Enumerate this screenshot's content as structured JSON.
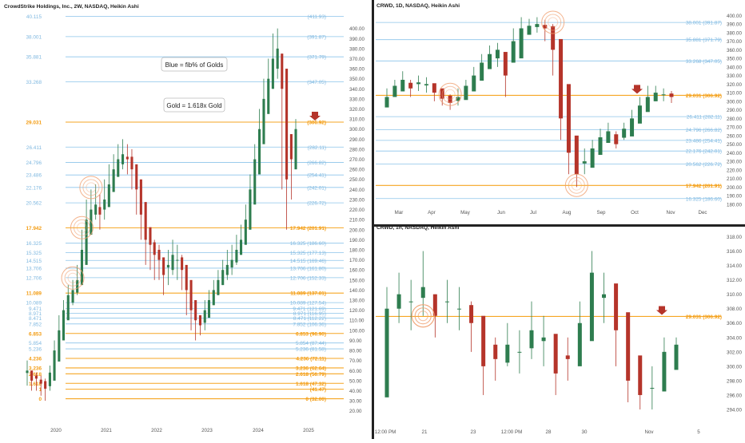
{
  "colors": {
    "blue_fib": "#8cc4ea",
    "blue_label": "#7fb8e0",
    "gold": "#f6a623",
    "gold_text": "#f39c12",
    "candle_up": "#2e7d4f",
    "candle_down": "#b5342a",
    "axis_text": "#555555",
    "divider": "#222222",
    "circle": "#f0a070"
  },
  "icons": [
    "down-arrow-icon",
    "highlight-circle-icon"
  ],
  "chart_data": [
    {
      "type": "candlestick",
      "title": "CrowdStrike Holdings, Inc., 2W, NASDAQ, Heikin Ashi",
      "xlabel": "",
      "ylabel": "",
      "x_ticks": [
        "2020",
        "2021",
        "2022",
        "2023",
        "2024",
        "2025"
      ],
      "y_ticks": [
        "400.00",
        "390.00",
        "380.00",
        "370.00",
        "360.00",
        "350.00",
        "340.00",
        "330.00",
        "320.00",
        "310.00",
        "300.00",
        "290.00",
        "280.00",
        "270.00",
        "260.00",
        "250.00",
        "240.00",
        "230.00",
        "220.00",
        "210.00",
        "200.00",
        "190.00",
        "180.00",
        "170.00",
        "160.00",
        "150.00",
        "140.00",
        "130.00",
        "120.00",
        "110.00",
        "100.00",
        "90.00",
        "80.00",
        "70.00",
        "60.00",
        "50.00",
        "40.00",
        "30.00",
        "20.00"
      ],
      "ylim": [
        15,
        414
      ],
      "fib_levels": [
        {
          "ratio": "40.115",
          "price": 411.93,
          "label": "(411.93)",
          "color": "blue"
        },
        {
          "ratio": "38.001",
          "price": 391.87,
          "label": "(391.87)",
          "color": "blue"
        },
        {
          "ratio": "35.881",
          "price": 371.79,
          "label": "(371.79)",
          "color": "blue"
        },
        {
          "ratio": "33.268",
          "price": 347.05,
          "label": "(347.05)",
          "color": "blue"
        },
        {
          "ratio": "29.031",
          "price": 306.92,
          "label": "(306.92)",
          "color": "gold"
        },
        {
          "ratio": "26.411",
          "price": 282.11,
          "label": "(282.11)",
          "color": "blue"
        },
        {
          "ratio": "24.796",
          "price": 266.82,
          "label": "(266.82)",
          "color": "blue"
        },
        {
          "ratio": "23.486",
          "price": 254.41,
          "label": "(254.41)",
          "color": "blue"
        },
        {
          "ratio": "22.176",
          "price": 242.01,
          "label": "(242.01)",
          "color": "blue"
        },
        {
          "ratio": "20.562",
          "price": 226.72,
          "label": "(226.72)",
          "color": "blue"
        },
        {
          "ratio": "17.942",
          "price": 201.91,
          "label": "17.942 (201.91)",
          "color": "gold"
        },
        {
          "ratio": "16.325",
          "price": 186.6,
          "label": "16.325 (186.60)",
          "color": "blue"
        },
        {
          "ratio": "15.325",
          "price": 177.13,
          "label": "15.325 (177.13)",
          "color": "blue"
        },
        {
          "ratio": "14.515",
          "price": 169.46,
          "label": "14.515 (169.46)",
          "color": "blue"
        },
        {
          "ratio": "13.706",
          "price": 161.8,
          "label": "13.706 (161.80)",
          "color": "blue"
        },
        {
          "ratio": "12.706",
          "price": 152.33,
          "label": "12.706 (152.33)",
          "color": "blue"
        },
        {
          "ratio": "11.089",
          "price": 137.01,
          "label": "11.089 (137.01)",
          "color": "gold"
        },
        {
          "ratio": "10.089",
          "price": 127.54,
          "label": "10.089 (127.54)",
          "color": "blue"
        },
        {
          "ratio": "9.471",
          "price": 121.69,
          "label": "9.471 (121.69)",
          "color": "blue"
        },
        {
          "ratio": "8.971",
          "price": 116.95,
          "label": "8.971 (116.95)",
          "color": "blue"
        },
        {
          "ratio": "8.471",
          "price": 112.22,
          "label": "8.471 (112.22)",
          "color": "blue"
        },
        {
          "ratio": "7.852",
          "price": 106.36,
          "label": "7.852 (106.36)",
          "color": "blue"
        },
        {
          "ratio": "6.853",
          "price": 96.9,
          "label": "6.853 (96.90)",
          "color": "gold"
        },
        {
          "ratio": "5.854",
          "price": 87.44,
          "label": "5.854 (87.44)",
          "color": "blue"
        },
        {
          "ratio": "5.236",
          "price": 81.58,
          "label": "5.236 (81.58)",
          "color": "blue"
        },
        {
          "ratio": "4.236",
          "price": 72.11,
          "label": "4.236 (72.11)",
          "color": "gold"
        },
        {
          "ratio": "3.236",
          "price": 62.64,
          "label": "3.236 (62.64)",
          "color": "gold"
        },
        {
          "ratio": "2.618",
          "price": 56.79,
          "label": "2.618 (56.79)",
          "color": "gold"
        },
        {
          "ratio": "1.618",
          "price": 47.32,
          "label": "1.618 (47.32)",
          "color": "gold"
        },
        {
          "ratio": "1",
          "price": 41.47,
          "label": "(41.47)",
          "color": "gold"
        },
        {
          "ratio": "0",
          "price": 32.0,
          "label": "0 (32.00)",
          "color": "gold"
        }
      ],
      "annotations": [
        {
          "text": "Blue = fib% of Golds"
        },
        {
          "text": "Gold = 1.618x Gold"
        }
      ],
      "highlight_prices": [
        242,
        152,
        202
      ],
      "x": [
        "2019-11",
        "2019-12",
        "2020-01",
        "2020-02",
        "2020-03",
        "2020-04",
        "2020-05",
        "2020-06",
        "2020-07",
        "2020-08",
        "2020-09",
        "2020-10",
        "2020-11",
        "2020-12",
        "2021-01",
        "2021-02",
        "2021-03",
        "2021-04",
        "2021-05",
        "2021-06",
        "2021-07",
        "2021-08",
        "2021-09",
        "2021-10",
        "2021-11",
        "2021-12",
        "2022-01",
        "2022-02",
        "2022-03",
        "2022-04",
        "2022-05",
        "2022-06",
        "2022-07",
        "2022-08",
        "2022-09",
        "2022-10",
        "2022-11",
        "2022-12",
        "2023-01",
        "2023-02",
        "2023-03",
        "2023-04",
        "2023-05",
        "2023-06",
        "2023-07",
        "2023-08",
        "2023-09",
        "2023-10",
        "2023-11",
        "2023-12",
        "2024-01",
        "2024-02",
        "2024-03",
        "2024-04",
        "2024-05",
        "2024-06",
        "2024-07",
        "2024-08",
        "2024-09",
        "2024-10"
      ],
      "close": [
        60,
        50,
        52,
        47,
        42,
        58,
        80,
        100,
        120,
        135,
        140,
        150,
        180,
        210,
        220,
        225,
        215,
        230,
        245,
        260,
        270,
        275,
        270,
        260,
        240,
        215,
        190,
        185,
        175,
        170,
        155,
        165,
        175,
        170,
        160,
        140,
        120,
        110,
        105,
        120,
        130,
        140,
        150,
        160,
        165,
        170,
        180,
        190,
        210,
        240,
        270,
        300,
        330,
        350,
        370,
        380,
        340,
        250,
        270,
        300
      ],
      "high": [
        70,
        60,
        58,
        55,
        52,
        65,
        90,
        115,
        130,
        145,
        150,
        165,
        200,
        230,
        240,
        245,
        235,
        250,
        265,
        275,
        285,
        290,
        285,
        280,
        260,
        235,
        210,
        200,
        190,
        185,
        170,
        180,
        190,
        185,
        175,
        155,
        135,
        120,
        115,
        130,
        140,
        150,
        160,
        170,
        180,
        185,
        195,
        205,
        225,
        255,
        285,
        320,
        350,
        370,
        395,
        400,
        360,
        300,
        290,
        310
      ],
      "low": [
        45,
        40,
        40,
        35,
        30,
        40,
        55,
        85,
        105,
        120,
        125,
        135,
        160,
        190,
        200,
        210,
        200,
        210,
        225,
        240,
        255,
        260,
        255,
        240,
        215,
        190,
        165,
        160,
        150,
        150,
        135,
        145,
        155,
        150,
        140,
        115,
        100,
        90,
        95,
        100,
        115,
        125,
        135,
        145,
        150,
        155,
        165,
        175,
        190,
        215,
        245,
        275,
        305,
        320,
        340,
        350,
        240,
        200,
        230,
        260
      ]
    },
    {
      "type": "candlestick",
      "title": "CRWD, 1D, NASDAQ, Heikin Ashi",
      "xlabel": "",
      "ylabel": "",
      "x_ticks": [
        "Mar",
        "Apr",
        "May",
        "Jun",
        "Jul",
        "Aug",
        "Sep",
        "Oct",
        "Nov",
        "Dec"
      ],
      "y_ticks": [
        "400.00",
        "390.00",
        "380.00",
        "370.00",
        "360.00",
        "350.00",
        "340.00",
        "330.00",
        "320.00",
        "310.00",
        "300.00",
        "290.00",
        "280.00",
        "270.00",
        "260.00",
        "250.00",
        "240.00",
        "230.00",
        "220.00",
        "210.00",
        "200.00",
        "190.00",
        "180.00"
      ],
      "ylim": [
        178,
        405
      ],
      "fib_levels": [
        {
          "ratio": "38.001",
          "price": 391.87,
          "label": "38.001 (391.87)",
          "color": "blue"
        },
        {
          "ratio": "35.881",
          "price": 371.79,
          "label": "35.881 (371.79)",
          "color": "blue"
        },
        {
          "ratio": "33.268",
          "price": 347.05,
          "label": "33.268 (347.05)",
          "color": "blue"
        },
        {
          "ratio": "29.031",
          "price": 306.92,
          "label": "29.031 (306.92)",
          "color": "gold"
        },
        {
          "ratio": "26.411",
          "price": 282.11,
          "label": "26.411 (282.11)",
          "color": "blue"
        },
        {
          "ratio": "24.796",
          "price": 266.82,
          "label": "24.796 (266.82)",
          "color": "blue"
        },
        {
          "ratio": "23.486",
          "price": 254.41,
          "label": "23.486 (254.41)",
          "color": "blue"
        },
        {
          "ratio": "22.176",
          "price": 242.01,
          "label": "22.176 (242.01)",
          "color": "blue"
        },
        {
          "ratio": "20.562",
          "price": 226.72,
          "label": "20.562 (226.72)",
          "color": "blue"
        },
        {
          "ratio": "17.942",
          "price": 201.91,
          "label": "17.942 (201.91)",
          "color": "gold"
        },
        {
          "ratio": "16.325",
          "price": 186.6,
          "label": "16.325 (186.60)",
          "color": "blue"
        }
      ],
      "highlight_prices": [
        392,
        308,
        202
      ],
      "x": [
        "2024-02-19",
        "2024-02-26",
        "2024-03-04",
        "2024-03-11",
        "2024-03-18",
        "2024-03-25",
        "2024-04-01",
        "2024-04-08",
        "2024-04-15",
        "2024-04-22",
        "2024-04-29",
        "2024-05-06",
        "2024-05-13",
        "2024-05-20",
        "2024-05-27",
        "2024-06-03",
        "2024-06-10",
        "2024-06-17",
        "2024-06-24",
        "2024-07-01",
        "2024-07-08",
        "2024-07-15",
        "2024-07-22",
        "2024-07-29",
        "2024-08-05",
        "2024-08-12",
        "2024-08-19",
        "2024-08-26",
        "2024-09-02",
        "2024-09-09",
        "2024-09-16",
        "2024-09-23",
        "2024-09-30",
        "2024-10-07",
        "2024-10-14",
        "2024-10-21",
        "2024-10-28"
      ],
      "close": [
        305,
        318,
        325,
        315,
        322,
        320,
        310,
        303,
        298,
        305,
        318,
        330,
        345,
        355,
        360,
        330,
        370,
        385,
        388,
        390,
        385,
        360,
        280,
        240,
        215,
        230,
        245,
        258,
        265,
        250,
        268,
        280,
        295,
        305,
        310,
        308,
        305
      ],
      "high": [
        315,
        325,
        335,
        325,
        330,
        328,
        320,
        312,
        308,
        315,
        325,
        340,
        355,
        365,
        368,
        345,
        385,
        398,
        396,
        398,
        395,
        390,
        330,
        275,
        240,
        245,
        255,
        268,
        275,
        265,
        275,
        290,
        305,
        318,
        318,
        315,
        312
      ],
      "low": [
        295,
        305,
        315,
        305,
        312,
        310,
        300,
        295,
        290,
        295,
        310,
        320,
        335,
        345,
        340,
        305,
        345,
        375,
        378,
        380,
        370,
        330,
        255,
        215,
        200,
        215,
        235,
        245,
        255,
        245,
        255,
        270,
        285,
        295,
        300,
        300,
        298
      ]
    },
    {
      "type": "candlestick",
      "title": "CRWD, 1h, NASDAQ, Heikin Ashi",
      "xlabel": "",
      "ylabel": "",
      "x_ticks": [
        "12:00 PM",
        "21",
        "23",
        "12:00 PM",
        "28",
        "30",
        "Nov",
        "5"
      ],
      "y_ticks": [
        "318.00",
        "316.00",
        "314.00",
        "312.00",
        "310.00",
        "308.00",
        "306.00",
        "304.00",
        "302.00",
        "300.00",
        "298.00",
        "296.00",
        "294.00"
      ],
      "ylim": [
        293,
        318.5
      ],
      "fib_levels": [
        {
          "ratio": "29.031",
          "price": 306.92,
          "label": "29.031 (306.92)",
          "color": "gold"
        }
      ],
      "highlight_prices": [
        307,
        307
      ],
      "x": [
        "10-17 a",
        "10-17 b",
        "10-18 a",
        "10-18 b",
        "10-21 a",
        "10-21 b",
        "10-22 a",
        "10-22 b",
        "10-23 a",
        "10-23 b",
        "10-24 a",
        "10-24 b",
        "10-25 a",
        "10-25 b",
        "10-28 a",
        "10-28 b",
        "10-29 a",
        "10-29 b",
        "10-30 a",
        "10-30 b",
        "10-31 a",
        "10-31 b",
        "11-01 a",
        "11-01 b",
        "11-04 a"
      ],
      "close": [
        308,
        310,
        309,
        311,
        307,
        309,
        308,
        306,
        300,
        301,
        303,
        302,
        305,
        304,
        299,
        301,
        306,
        313,
        310,
        305,
        298,
        296,
        297,
        302,
        303
      ],
      "high": [
        311,
        313,
        312,
        316,
        310,
        312,
        311,
        309,
        304,
        304,
        306,
        305,
        309,
        307,
        303,
        304,
        309,
        316,
        313,
        309,
        302,
        299,
        300,
        304,
        304
      ],
      "low": [
        305,
        306,
        305,
        307,
        304,
        306,
        305,
        302,
        296,
        298,
        300,
        299,
        301,
        300,
        296,
        298,
        302,
        308,
        306,
        300,
        295,
        294,
        294,
        298,
        300
      ]
    }
  ]
}
